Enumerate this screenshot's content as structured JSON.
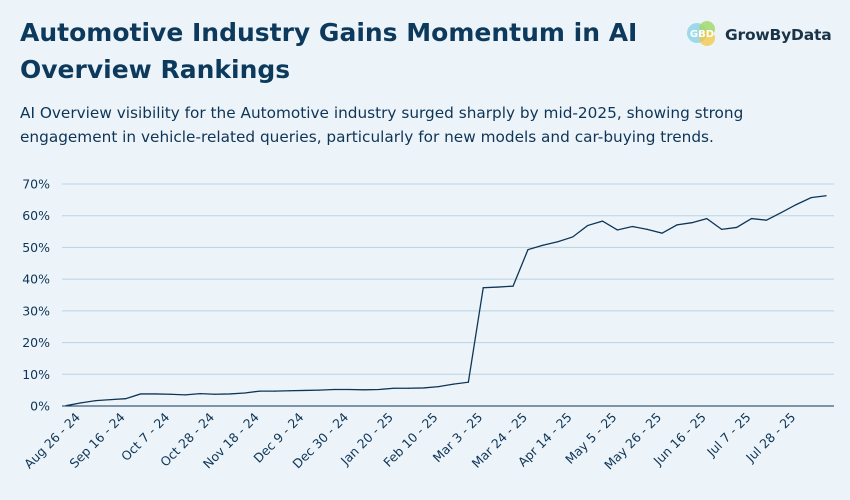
{
  "header": {
    "title": "Automotive Industry Gains Momentum in AI Overview Rankings",
    "subtitle": "AI Overview visibility for the Automotive industry surged sharply by mid-2025, showing strong engagement in vehicle-related queries, particularly for new models and car-buying trends."
  },
  "brand": {
    "name": "GrowByData",
    "logo_icon": "growbydata-logo-icon",
    "logo_colors": [
      "#8fd3e8",
      "#a6d86c",
      "#f4c542"
    ]
  },
  "colors": {
    "background": "#ecf4fa",
    "line": "#0f3556",
    "grid": "#b9d3e2",
    "text": "#0f3556"
  },
  "chart_data": {
    "type": "line",
    "title": "",
    "xlabel": "",
    "ylabel": "",
    "ylim": [
      0,
      70
    ],
    "y_ticks": [
      "0%",
      "10%",
      "20%",
      "30%",
      "40%",
      "50%",
      "60%",
      "70%"
    ],
    "grid": "horizontal",
    "x_tick_labels": [
      "Aug 26 - 24",
      "Sep 16 - 24",
      "Oct 7 - 24",
      "Oct 28 - 24",
      "Nov 18 - 24",
      "Dec 9 - 24",
      "Dec 30 - 24",
      "Jan 20 - 25",
      "Feb 10 - 25",
      "Mar 3 - 25",
      "Mar 24 - 25",
      "Apr 14 - 25",
      "May 5 - 25",
      "May 26 - 25",
      "Jun 16 - 25",
      "Jul 7 - 25",
      "Jul 28 - 25"
    ],
    "series": [
      {
        "name": "",
        "values": [
          0.1,
          1.0,
          1.7,
          2.0,
          2.3,
          3.8,
          3.8,
          3.7,
          3.5,
          3.9,
          3.7,
          3.8,
          4.1,
          4.7,
          4.7,
          4.8,
          4.9,
          5.0,
          5.2,
          5.2,
          5.1,
          5.2,
          5.6,
          5.6,
          5.7,
          6.1,
          6.9,
          7.5,
          37.3,
          37.5,
          37.8,
          49.3,
          50.7,
          51.8,
          53.3,
          56.9,
          58.3,
          55.5,
          56.6,
          55.7,
          54.5,
          57.1,
          57.8,
          59.1,
          55.7,
          56.3,
          59.1,
          58.6,
          61.0,
          63.5,
          65.7,
          66.3
        ]
      }
    ]
  }
}
